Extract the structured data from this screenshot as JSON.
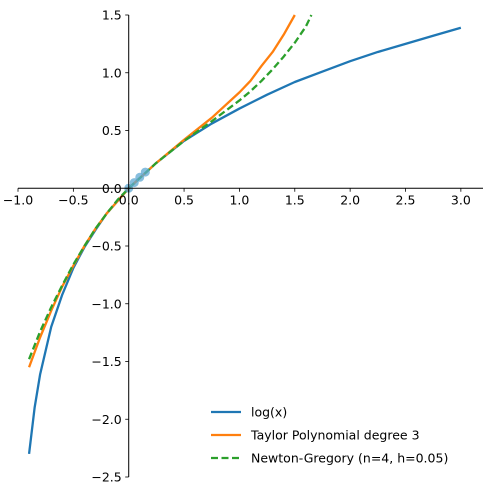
{
  "chart_data": {
    "type": "line",
    "xlim": [
      -1.0,
      3.2
    ],
    "ylim": [
      -2.5,
      1.5
    ],
    "x_ticks": [
      -1.0,
      -0.5,
      0.0,
      0.5,
      1.0,
      1.5,
      2.0,
      2.5,
      3.0
    ],
    "x_tick_labels": [
      "−1.0",
      "−0.5",
      "0.0",
      "0.5",
      "1.0",
      "1.5",
      "2.0",
      "2.5",
      "3.0"
    ],
    "y_ticks": [
      -2.5,
      -2.0,
      -1.5,
      -1.0,
      -0.5,
      0.0,
      0.5,
      1.0,
      1.5
    ],
    "y_tick_labels": [
      "−2.5",
      "−2.0",
      "−1.5",
      "−1.0",
      "−0.5",
      "0.0",
      "0.5",
      "1.0",
      "1.5"
    ],
    "spines": "centered at origin",
    "grid": false,
    "legend_position": "lower-right",
    "colors": {
      "blue": "#1f77b4",
      "orange": "#ff7f0e",
      "green": "#2ca02c",
      "sample_points": "#5fa8d3"
    },
    "series": [
      {
        "name": "log(x)",
        "style": "solid",
        "color": "#1f77b4",
        "x": [
          -0.9,
          -0.85,
          -0.8,
          -0.7,
          -0.6,
          -0.5,
          -0.4,
          -0.3,
          -0.2,
          -0.1,
          0.0,
          0.25,
          0.5,
          0.75,
          1.0,
          1.25,
          1.5,
          1.75,
          2.0,
          2.25,
          2.5,
          2.75,
          3.0
        ],
        "y": [
          -2.3,
          -1.9,
          -1.61,
          -1.2,
          -0.92,
          -0.69,
          -0.51,
          -0.36,
          -0.22,
          -0.11,
          0.0,
          0.22,
          0.41,
          0.56,
          0.69,
          0.81,
          0.92,
          1.01,
          1.1,
          1.18,
          1.25,
          1.32,
          1.39
        ]
      },
      {
        "name": "Taylor Polynomial degree 3",
        "style": "solid",
        "color": "#ff7f0e",
        "x": [
          -0.9,
          -0.8,
          -0.7,
          -0.6,
          -0.5,
          -0.4,
          -0.3,
          -0.2,
          -0.1,
          0.0,
          0.25,
          0.5,
          0.75,
          1.0,
          1.1,
          1.2,
          1.3,
          1.4,
          1.5
        ],
        "y": [
          -1.55,
          -1.29,
          -1.06,
          -0.85,
          -0.67,
          -0.5,
          -0.35,
          -0.22,
          -0.11,
          0.0,
          0.22,
          0.42,
          0.61,
          0.83,
          0.93,
          1.06,
          1.18,
          1.33,
          1.5
        ]
      },
      {
        "name": "Newton-Gregory (n=4, h=0.05)",
        "style": "dashed",
        "color": "#2ca02c",
        "x": [
          -0.9,
          -0.8,
          -0.7,
          -0.6,
          -0.5,
          -0.4,
          -0.3,
          -0.2,
          -0.1,
          0.0,
          0.25,
          0.5,
          0.75,
          1.0,
          1.1,
          1.2,
          1.3,
          1.4,
          1.5,
          1.6,
          1.65
        ],
        "y": [
          -1.48,
          -1.24,
          -1.03,
          -0.84,
          -0.66,
          -0.5,
          -0.35,
          -0.22,
          -0.1,
          0.0,
          0.22,
          0.41,
          0.58,
          0.76,
          0.84,
          0.93,
          1.03,
          1.14,
          1.26,
          1.4,
          1.5
        ]
      }
    ],
    "sample_points": {
      "x": [
        0.0,
        0.05,
        0.1,
        0.15
      ],
      "y": [
        0.0,
        0.049,
        0.095,
        0.14
      ]
    }
  }
}
